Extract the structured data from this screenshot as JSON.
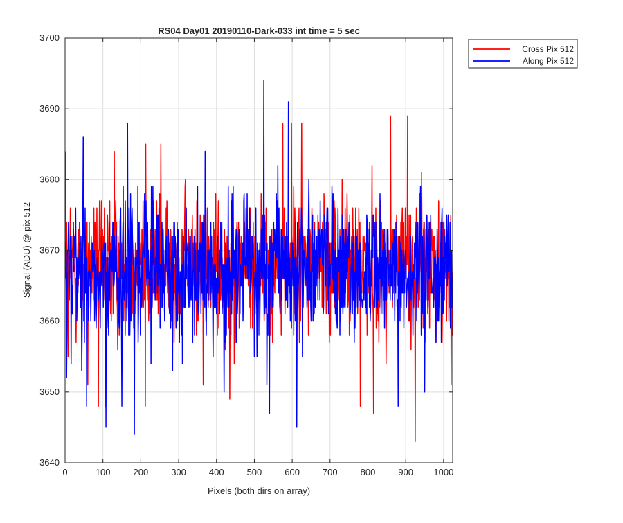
{
  "chart_data": {
    "type": "line",
    "title": "RS04 Day01 20190110-Dark-033 int time = 5 sec",
    "xlabel": "Pixels (both dirs on array)",
    "ylabel": "Signal (ADU) @ pix 512",
    "xlim": [
      0,
      1024
    ],
    "ylim": [
      3640,
      3700
    ],
    "xticks": [
      0,
      100,
      200,
      300,
      400,
      500,
      600,
      700,
      800,
      900,
      1000
    ],
    "yticks": [
      3640,
      3650,
      3660,
      3670,
      3680,
      3690,
      3700
    ],
    "grid": true,
    "legend_position": "outside-top-right",
    "x_range": [
      1,
      1024
    ],
    "series": [
      {
        "name": "Cross Pix 512",
        "color": "#ff0000",
        "mean": 3668,
        "std": 6.5,
        "min": 3643,
        "max": 3689,
        "notable_points": [
          [
            1,
            3684
          ],
          [
            8,
            3655
          ],
          [
            60,
            3651
          ],
          [
            88,
            3648
          ],
          [
            107,
            3648
          ],
          [
            130,
            3684
          ],
          [
            212,
            3648
          ],
          [
            213,
            3685
          ],
          [
            253,
            3685
          ],
          [
            365,
            3651
          ],
          [
            435,
            3649
          ],
          [
            575,
            3688
          ],
          [
            598,
            3688
          ],
          [
            625,
            3688
          ],
          [
            780,
            3648
          ],
          [
            815,
            3647
          ],
          [
            860,
            3689
          ],
          [
            905,
            3689
          ],
          [
            925,
            3643
          ],
          [
            1020,
            3651
          ]
        ]
      },
      {
        "name": "Along Pix 512",
        "color": "#0000ff",
        "mean": 3667,
        "std": 6.5,
        "min": 3644,
        "max": 3694,
        "notable_points": [
          [
            4,
            3652
          ],
          [
            48,
            3686
          ],
          [
            57,
            3648
          ],
          [
            108,
            3645
          ],
          [
            150,
            3648
          ],
          [
            165,
            3688
          ],
          [
            183,
            3644
          ],
          [
            210,
            3678
          ],
          [
            370,
            3684
          ],
          [
            420,
            3650
          ],
          [
            525,
            3694
          ],
          [
            540,
            3647
          ],
          [
            590,
            3691
          ],
          [
            612,
            3645
          ],
          [
            880,
            3648
          ],
          [
            950,
            3650
          ]
        ]
      }
    ]
  }
}
